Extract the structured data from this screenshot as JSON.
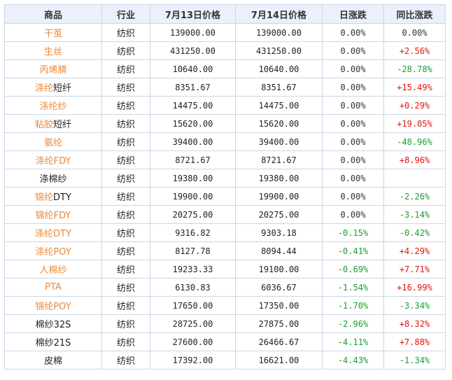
{
  "colors": {
    "link_orange": "#e88a3c",
    "up_red": "#e3140b",
    "down_green": "#1a9e2f",
    "header_bg": "#eaf1fb"
  },
  "headers": [
    "商品",
    "行业",
    "7月13日价格",
    "7月14日价格",
    "日涨跌",
    "同比涨跌"
  ],
  "rows": [
    {
      "name_hl": "干茧",
      "name_rest": "",
      "industry": "纺织",
      "p13": "139000.00",
      "p14": "139000.00",
      "day": "0.00%",
      "day_dir": "zero",
      "yoy": "0.00%",
      "yoy_dir": "zero"
    },
    {
      "name_hl": "生丝",
      "name_rest": "",
      "industry": "纺织",
      "p13": "431250.00",
      "p14": "431250.00",
      "day": "0.00%",
      "day_dir": "zero",
      "yoy": "+2.56%",
      "yoy_dir": "pos"
    },
    {
      "name_hl": "丙烯腈",
      "name_rest": "",
      "industry": "纺织",
      "p13": "10640.00",
      "p14": "10640.00",
      "day": "0.00%",
      "day_dir": "zero",
      "yoy": "-28.78%",
      "yoy_dir": "neg"
    },
    {
      "name_hl": "涤纶",
      "name_rest": "短纤",
      "industry": "纺织",
      "p13": "8351.67",
      "p14": "8351.67",
      "day": "0.00%",
      "day_dir": "zero",
      "yoy": "+15.49%",
      "yoy_dir": "pos"
    },
    {
      "name_hl": "涤纶纱",
      "name_rest": "",
      "industry": "纺织",
      "p13": "14475.00",
      "p14": "14475.00",
      "day": "0.00%",
      "day_dir": "zero",
      "yoy": "+0.29%",
      "yoy_dir": "pos"
    },
    {
      "name_hl": "粘胶",
      "name_rest": "短纤",
      "industry": "纺织",
      "p13": "15620.00",
      "p14": "15620.00",
      "day": "0.00%",
      "day_dir": "zero",
      "yoy": "+19.05%",
      "yoy_dir": "pos"
    },
    {
      "name_hl": "氨纶",
      "name_rest": "",
      "industry": "纺织",
      "p13": "39400.00",
      "p14": "39400.00",
      "day": "0.00%",
      "day_dir": "zero",
      "yoy": "-48.96%",
      "yoy_dir": "neg"
    },
    {
      "name_hl": "涤纶FDY",
      "name_rest": "",
      "industry": "纺织",
      "p13": "8721.67",
      "p14": "8721.67",
      "day": "0.00%",
      "day_dir": "zero",
      "yoy": "+8.96%",
      "yoy_dir": "pos"
    },
    {
      "name_hl": "",
      "name_rest": "涤棉纱",
      "industry": "纺织",
      "p13": "19380.00",
      "p14": "19380.00",
      "day": "0.00%",
      "day_dir": "zero",
      "yoy": "",
      "yoy_dir": "zero"
    },
    {
      "name_hl": "锦纶",
      "name_rest": "DTY",
      "industry": "纺织",
      "p13": "19900.00",
      "p14": "19900.00",
      "day": "0.00%",
      "day_dir": "zero",
      "yoy": "-2.26%",
      "yoy_dir": "neg"
    },
    {
      "name_hl": "锦纶FDY",
      "name_rest": "",
      "industry": "纺织",
      "p13": "20275.00",
      "p14": "20275.00",
      "day": "0.00%",
      "day_dir": "zero",
      "yoy": "-3.14%",
      "yoy_dir": "neg"
    },
    {
      "name_hl": "涤纶DTY",
      "name_rest": "",
      "industry": "纺织",
      "p13": "9316.82",
      "p14": "9303.18",
      "day": "-0.15%",
      "day_dir": "neg",
      "yoy": "-0.42%",
      "yoy_dir": "neg"
    },
    {
      "name_hl": "涤纶POY",
      "name_rest": "",
      "industry": "纺织",
      "p13": "8127.78",
      "p14": "8094.44",
      "day": "-0.41%",
      "day_dir": "neg",
      "yoy": "+4.29%",
      "yoy_dir": "pos"
    },
    {
      "name_hl": "人棉纱",
      "name_rest": "",
      "industry": "纺织",
      "p13": "19233.33",
      "p14": "19100.00",
      "day": "-0.69%",
      "day_dir": "neg",
      "yoy": "+7.71%",
      "yoy_dir": "pos"
    },
    {
      "name_hl": "PTA",
      "name_rest": "",
      "industry": "纺织",
      "p13": "6130.83",
      "p14": "6036.67",
      "day": "-1.54%",
      "day_dir": "neg",
      "yoy": "+16.99%",
      "yoy_dir": "pos"
    },
    {
      "name_hl": "锦纶POY",
      "name_rest": "",
      "industry": "纺织",
      "p13": "17650.00",
      "p14": "17350.00",
      "day": "-1.70%",
      "day_dir": "neg",
      "yoy": "-3.34%",
      "yoy_dir": "neg"
    },
    {
      "name_hl": "",
      "name_rest": "棉纱32S",
      "industry": "纺织",
      "p13": "28725.00",
      "p14": "27875.00",
      "day": "-2.96%",
      "day_dir": "neg",
      "yoy": "+8.32%",
      "yoy_dir": "pos"
    },
    {
      "name_hl": "",
      "name_rest": "棉纱21S",
      "industry": "纺织",
      "p13": "27600.00",
      "p14": "26466.67",
      "day": "-4.11%",
      "day_dir": "neg",
      "yoy": "+7.88%",
      "yoy_dir": "pos"
    },
    {
      "name_hl": "",
      "name_rest": "皮棉",
      "industry": "纺织",
      "p13": "17392.00",
      "p14": "16621.00",
      "day": "-4.43%",
      "day_dir": "neg",
      "yoy": "-1.34%",
      "yoy_dir": "neg"
    }
  ]
}
